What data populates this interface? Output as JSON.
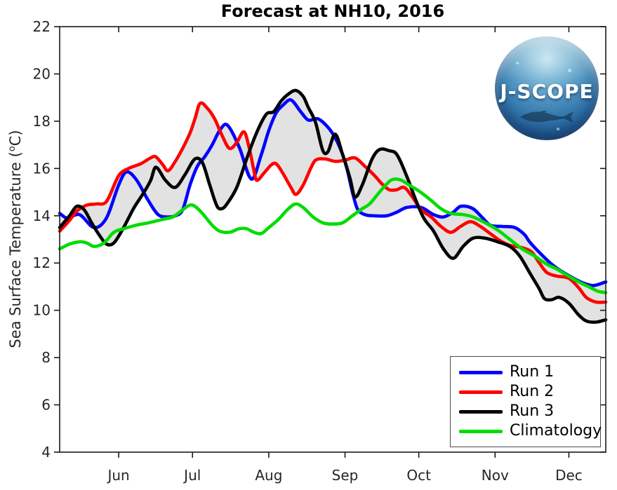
{
  "title": "Forecast at NH10, 2016",
  "logo": {
    "text": "J-SCOPE"
  },
  "labels": {
    "ylabel_pre": "Sea Surface Temperature (",
    "ylabel_sup": "o",
    "ylabel_post": "C)"
  },
  "chart_data": {
    "type": "line",
    "title": "Forecast at NH10, 2016",
    "xlabel": "",
    "ylabel": "Sea Surface Temperature (°C)",
    "x_unit": "days since 2016-05-08",
    "xlim": [
      0,
      222
    ],
    "ylim": [
      4,
      22
    ],
    "grid": false,
    "legend_position": "lower right",
    "y_ticks": [
      4,
      6,
      8,
      10,
      12,
      14,
      16,
      18,
      20,
      22
    ],
    "x_ticks": [
      {
        "day": 24,
        "label": "Jun"
      },
      {
        "day": 54,
        "label": "Jul"
      },
      {
        "day": 85,
        "label": "Aug"
      },
      {
        "day": 116,
        "label": "Sep"
      },
      {
        "day": 146,
        "label": "Oct"
      },
      {
        "day": 177,
        "label": "Nov"
      },
      {
        "day": 207,
        "label": "Dec"
      }
    ],
    "envelope": {
      "description": "min-max band across Run 1, Run 2, Run 3",
      "color": "#e2e2e2"
    },
    "series": [
      {
        "name": "Run 1",
        "color": "#0000ff",
        "in_envelope": true,
        "points": [
          [
            0,
            14.1
          ],
          [
            3,
            13.9
          ],
          [
            8,
            14.05
          ],
          [
            14,
            13.5
          ],
          [
            19,
            13.9
          ],
          [
            24,
            15.3
          ],
          [
            27,
            15.85
          ],
          [
            31,
            15.55
          ],
          [
            36,
            14.65
          ],
          [
            40,
            14.05
          ],
          [
            44,
            13.95
          ],
          [
            47,
            14.0
          ],
          [
            50,
            14.25
          ],
          [
            53,
            15.3
          ],
          [
            56,
            16.1
          ],
          [
            59,
            16.5
          ],
          [
            62,
            17.0
          ],
          [
            65,
            17.6
          ],
          [
            68,
            17.85
          ],
          [
            73,
            16.9
          ],
          [
            78,
            15.55
          ],
          [
            82,
            16.6
          ],
          [
            85,
            17.6
          ],
          [
            88,
            18.35
          ],
          [
            91,
            18.7
          ],
          [
            94,
            18.9
          ],
          [
            98,
            18.4
          ],
          [
            101,
            18.05
          ],
          [
            105,
            18.1
          ],
          [
            109,
            17.75
          ],
          [
            112,
            17.3
          ],
          [
            115,
            16.6
          ],
          [
            117,
            15.9
          ],
          [
            119,
            15.0
          ],
          [
            121,
            14.3
          ],
          [
            124,
            14.05
          ],
          [
            128,
            14.0
          ],
          [
            133,
            14.0
          ],
          [
            137,
            14.15
          ],
          [
            141,
            14.35
          ],
          [
            147,
            14.35
          ],
          [
            152,
            14.05
          ],
          [
            156,
            13.95
          ],
          [
            160,
            14.15
          ],
          [
            163,
            14.4
          ],
          [
            168,
            14.3
          ],
          [
            172,
            13.9
          ],
          [
            175,
            13.6
          ],
          [
            180,
            13.55
          ],
          [
            185,
            13.5
          ],
          [
            189,
            13.2
          ],
          [
            191,
            12.9
          ],
          [
            195,
            12.45
          ],
          [
            200,
            11.95
          ],
          [
            204,
            11.65
          ],
          [
            209,
            11.35
          ],
          [
            213,
            11.15
          ],
          [
            217,
            11.05
          ],
          [
            222,
            11.2
          ]
        ]
      },
      {
        "name": "Run 2",
        "color": "#ff0000",
        "in_envelope": true,
        "points": [
          [
            0,
            13.35
          ],
          [
            4,
            13.8
          ],
          [
            7,
            14.2
          ],
          [
            11,
            14.45
          ],
          [
            15,
            14.5
          ],
          [
            19,
            14.6
          ],
          [
            24,
            15.7
          ],
          [
            28,
            16.0
          ],
          [
            33,
            16.2
          ],
          [
            37,
            16.45
          ],
          [
            39,
            16.5
          ],
          [
            42,
            16.15
          ],
          [
            44,
            15.9
          ],
          [
            47,
            16.3
          ],
          [
            50,
            16.85
          ],
          [
            53,
            17.5
          ],
          [
            55,
            18.1
          ],
          [
            57,
            18.75
          ],
          [
            60,
            18.55
          ],
          [
            63,
            18.1
          ],
          [
            66,
            17.4
          ],
          [
            69,
            16.85
          ],
          [
            72,
            17.1
          ],
          [
            75,
            17.55
          ],
          [
            77,
            16.9
          ],
          [
            79,
            15.9
          ],
          [
            80,
            15.5
          ],
          [
            83,
            15.8
          ],
          [
            86,
            16.15
          ],
          [
            88,
            16.2
          ],
          [
            91,
            15.75
          ],
          [
            94,
            15.2
          ],
          [
            96,
            14.9
          ],
          [
            99,
            15.3
          ],
          [
            102,
            16.0
          ],
          [
            104,
            16.35
          ],
          [
            108,
            16.4
          ],
          [
            112,
            16.3
          ],
          [
            116,
            16.35
          ],
          [
            120,
            16.45
          ],
          [
            124,
            16.1
          ],
          [
            128,
            15.7
          ],
          [
            131,
            15.35
          ],
          [
            134,
            15.1
          ],
          [
            137,
            15.1
          ],
          [
            140,
            15.2
          ],
          [
            143,
            14.85
          ],
          [
            147,
            14.25
          ],
          [
            151,
            13.95
          ],
          [
            155,
            13.55
          ],
          [
            159,
            13.3
          ],
          [
            163,
            13.55
          ],
          [
            167,
            13.75
          ],
          [
            171,
            13.55
          ],
          [
            175,
            13.25
          ],
          [
            179,
            12.95
          ],
          [
            183,
            12.75
          ],
          [
            188,
            12.65
          ],
          [
            192,
            12.45
          ],
          [
            195,
            12.0
          ],
          [
            198,
            11.6
          ],
          [
            202,
            11.45
          ],
          [
            207,
            11.35
          ],
          [
            211,
            10.95
          ],
          [
            214,
            10.55
          ],
          [
            218,
            10.35
          ],
          [
            222,
            10.35
          ]
        ]
      },
      {
        "name": "Run 3",
        "color": "#000000",
        "in_envelope": true,
        "points": [
          [
            0,
            13.5
          ],
          [
            4,
            14.0
          ],
          [
            7,
            14.4
          ],
          [
            10,
            14.25
          ],
          [
            13,
            13.7
          ],
          [
            16,
            13.2
          ],
          [
            19,
            12.8
          ],
          [
            22,
            12.85
          ],
          [
            26,
            13.5
          ],
          [
            30,
            14.3
          ],
          [
            34,
            14.95
          ],
          [
            37,
            15.5
          ],
          [
            39,
            16.05
          ],
          [
            43,
            15.5
          ],
          [
            47,
            15.2
          ],
          [
            51,
            15.75
          ],
          [
            55,
            16.4
          ],
          [
            58,
            16.25
          ],
          [
            61,
            15.3
          ],
          [
            64,
            14.4
          ],
          [
            66,
            14.3
          ],
          [
            68,
            14.5
          ],
          [
            72,
            15.2
          ],
          [
            76,
            16.4
          ],
          [
            80,
            17.5
          ],
          [
            84,
            18.3
          ],
          [
            87,
            18.4
          ],
          [
            90,
            18.85
          ],
          [
            93,
            19.15
          ],
          [
            96,
            19.3
          ],
          [
            99,
            19.05
          ],
          [
            101,
            18.6
          ],
          [
            104,
            17.95
          ],
          [
            107,
            16.75
          ],
          [
            109,
            16.7
          ],
          [
            112,
            17.45
          ],
          [
            115,
            16.6
          ],
          [
            118,
            15.6
          ],
          [
            120,
            14.8
          ],
          [
            123,
            15.3
          ],
          [
            127,
            16.4
          ],
          [
            130,
            16.8
          ],
          [
            134,
            16.75
          ],
          [
            137,
            16.6
          ],
          [
            141,
            15.7
          ],
          [
            145,
            14.6
          ],
          [
            148,
            13.9
          ],
          [
            152,
            13.35
          ],
          [
            156,
            12.6
          ],
          [
            160,
            12.2
          ],
          [
            164,
            12.7
          ],
          [
            168,
            13.05
          ],
          [
            173,
            13.05
          ],
          [
            178,
            12.9
          ],
          [
            183,
            12.7
          ],
          [
            187,
            12.3
          ],
          [
            191,
            11.6
          ],
          [
            195,
            10.9
          ],
          [
            197,
            10.5
          ],
          [
            200,
            10.45
          ],
          [
            203,
            10.55
          ],
          [
            207,
            10.3
          ],
          [
            211,
            9.8
          ],
          [
            214,
            9.55
          ],
          [
            218,
            9.5
          ],
          [
            222,
            9.6
          ]
        ]
      },
      {
        "name": "Climatology",
        "color": "#00dd00",
        "in_envelope": false,
        "points": [
          [
            0,
            12.6
          ],
          [
            4,
            12.8
          ],
          [
            8,
            12.9
          ],
          [
            11,
            12.85
          ],
          [
            14,
            12.7
          ],
          [
            18,
            12.85
          ],
          [
            22,
            13.3
          ],
          [
            26,
            13.45
          ],
          [
            31,
            13.6
          ],
          [
            36,
            13.7
          ],
          [
            42,
            13.85
          ],
          [
            46,
            13.95
          ],
          [
            50,
            14.25
          ],
          [
            53,
            14.45
          ],
          [
            55,
            14.4
          ],
          [
            58,
            14.1
          ],
          [
            62,
            13.6
          ],
          [
            65,
            13.35
          ],
          [
            69,
            13.3
          ],
          [
            73,
            13.45
          ],
          [
            76,
            13.45
          ],
          [
            79,
            13.3
          ],
          [
            82,
            13.25
          ],
          [
            85,
            13.5
          ],
          [
            89,
            13.85
          ],
          [
            93,
            14.3
          ],
          [
            96,
            14.5
          ],
          [
            99,
            14.35
          ],
          [
            103,
            13.95
          ],
          [
            107,
            13.7
          ],
          [
            111,
            13.65
          ],
          [
            115,
            13.7
          ],
          [
            119,
            14.0
          ],
          [
            123,
            14.3
          ],
          [
            126,
            14.5
          ],
          [
            130,
            15.0
          ],
          [
            134,
            15.45
          ],
          [
            136,
            15.55
          ],
          [
            139,
            15.5
          ],
          [
            142,
            15.3
          ],
          [
            146,
            15.05
          ],
          [
            151,
            14.65
          ],
          [
            155,
            14.3
          ],
          [
            159,
            14.1
          ],
          [
            164,
            14.05
          ],
          [
            168,
            13.95
          ],
          [
            173,
            13.7
          ],
          [
            178,
            13.4
          ],
          [
            183,
            13.0
          ],
          [
            188,
            12.6
          ],
          [
            193,
            12.3
          ],
          [
            198,
            11.95
          ],
          [
            202,
            11.75
          ],
          [
            206,
            11.5
          ],
          [
            211,
            11.2
          ],
          [
            215,
            11.0
          ],
          [
            219,
            10.8
          ],
          [
            222,
            10.75
          ]
        ]
      }
    ]
  }
}
